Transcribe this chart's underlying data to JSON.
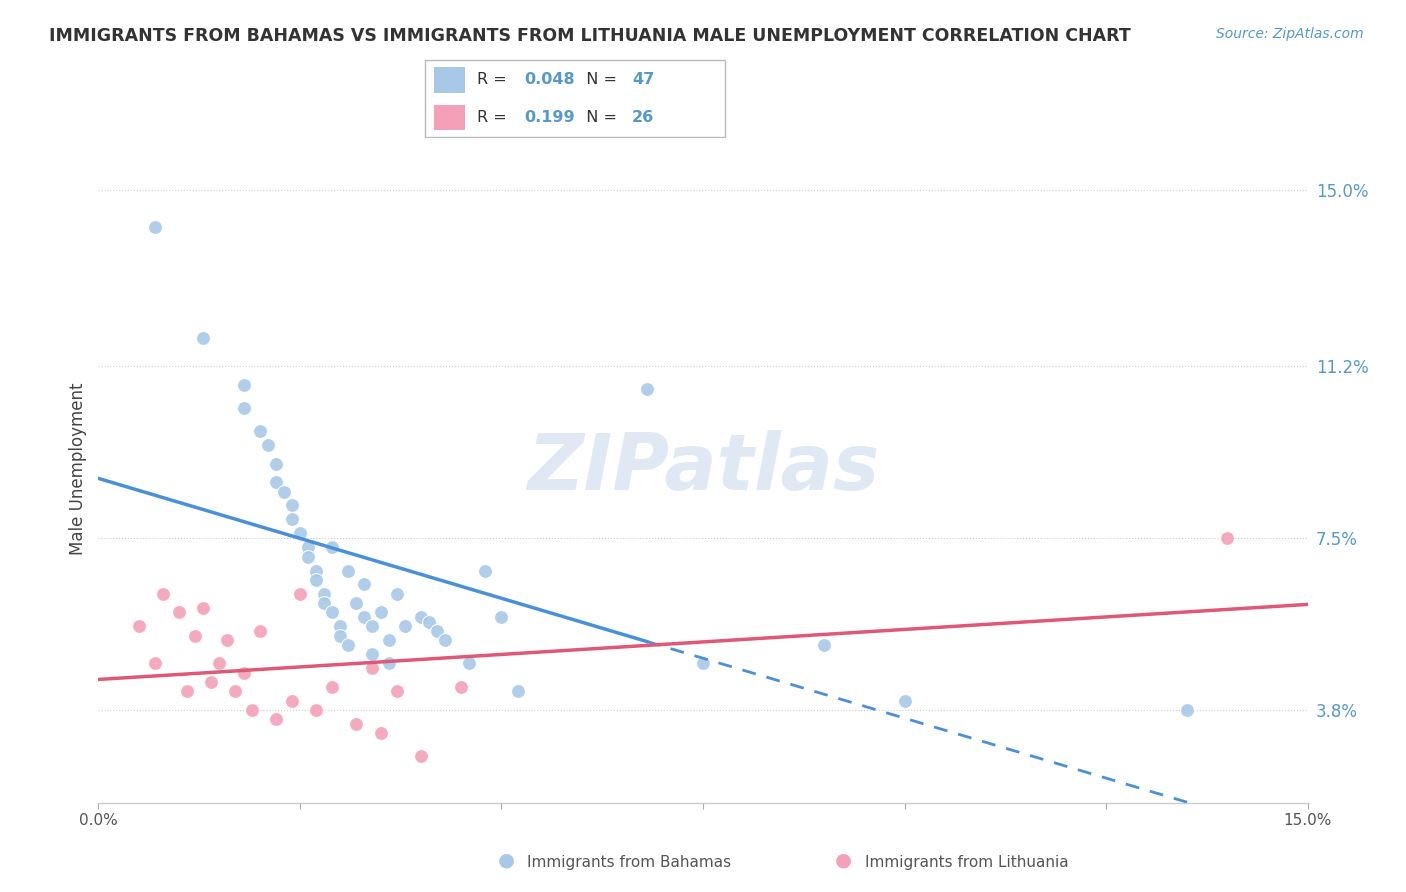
{
  "title": "IMMIGRANTS FROM BAHAMAS VS IMMIGRANTS FROM LITHUANIA MALE UNEMPLOYMENT CORRELATION CHART",
  "source": "Source: ZipAtlas.com",
  "ylabel": "Male Unemployment",
  "xmin": 0.0,
  "xmax": 0.15,
  "ymin": 0.018,
  "ymax": 0.162,
  "yticks": [
    0.038,
    0.075,
    0.112,
    0.15
  ],
  "ytick_labels": [
    "3.8%",
    "7.5%",
    "11.2%",
    "15.0%"
  ],
  "xticks": [
    0.0,
    0.025,
    0.05,
    0.075,
    0.1,
    0.125,
    0.15
  ],
  "xtick_labels": [
    "0.0%",
    "",
    "",
    "",
    "",
    "",
    "15.0%"
  ],
  "legend1_R": "0.048",
  "legend1_N": "47",
  "legend2_R": "0.199",
  "legend2_N": "26",
  "blue_color": "#a8c8e8",
  "pink_color": "#f4a0b8",
  "blue_line_color": "#4a90d9",
  "pink_line_color": "#e05878",
  "watermark": "ZIPatlas",
  "bahamas_x": [
    0.007,
    0.013,
    0.018,
    0.018,
    0.02,
    0.021,
    0.022,
    0.022,
    0.023,
    0.024,
    0.024,
    0.025,
    0.026,
    0.026,
    0.027,
    0.027,
    0.028,
    0.028,
    0.029,
    0.029,
    0.03,
    0.03,
    0.031,
    0.031,
    0.032,
    0.033,
    0.033,
    0.034,
    0.034,
    0.035,
    0.036,
    0.036,
    0.037,
    0.038,
    0.04,
    0.041,
    0.042,
    0.043,
    0.046,
    0.048,
    0.05,
    0.052,
    0.068,
    0.075,
    0.09,
    0.1,
    0.135
  ],
  "bahamas_y": [
    0.142,
    0.118,
    0.108,
    0.103,
    0.098,
    0.095,
    0.091,
    0.087,
    0.085,
    0.082,
    0.079,
    0.076,
    0.073,
    0.071,
    0.068,
    0.066,
    0.063,
    0.061,
    0.059,
    0.073,
    0.056,
    0.054,
    0.052,
    0.068,
    0.061,
    0.058,
    0.065,
    0.056,
    0.05,
    0.059,
    0.053,
    0.048,
    0.063,
    0.056,
    0.058,
    0.057,
    0.055,
    0.053,
    0.048,
    0.068,
    0.058,
    0.042,
    0.107,
    0.048,
    0.052,
    0.04,
    0.038
  ],
  "lithuania_x": [
    0.005,
    0.007,
    0.008,
    0.01,
    0.011,
    0.012,
    0.013,
    0.014,
    0.015,
    0.016,
    0.017,
    0.018,
    0.019,
    0.02,
    0.022,
    0.024,
    0.025,
    0.027,
    0.029,
    0.032,
    0.034,
    0.035,
    0.037,
    0.04,
    0.045,
    0.14
  ],
  "lithuania_y": [
    0.056,
    0.048,
    0.063,
    0.059,
    0.042,
    0.054,
    0.06,
    0.044,
    0.048,
    0.053,
    0.042,
    0.046,
    0.038,
    0.055,
    0.036,
    0.04,
    0.063,
    0.038,
    0.043,
    0.035,
    0.047,
    0.033,
    0.042,
    0.028,
    0.043,
    0.075
  ],
  "blue_line_start_x": 0.0,
  "blue_line_end_solid_x": 0.068,
  "blue_line_end_dashed_x": 0.15,
  "pink_line_start_x": 0.0,
  "pink_line_end_x": 0.15
}
